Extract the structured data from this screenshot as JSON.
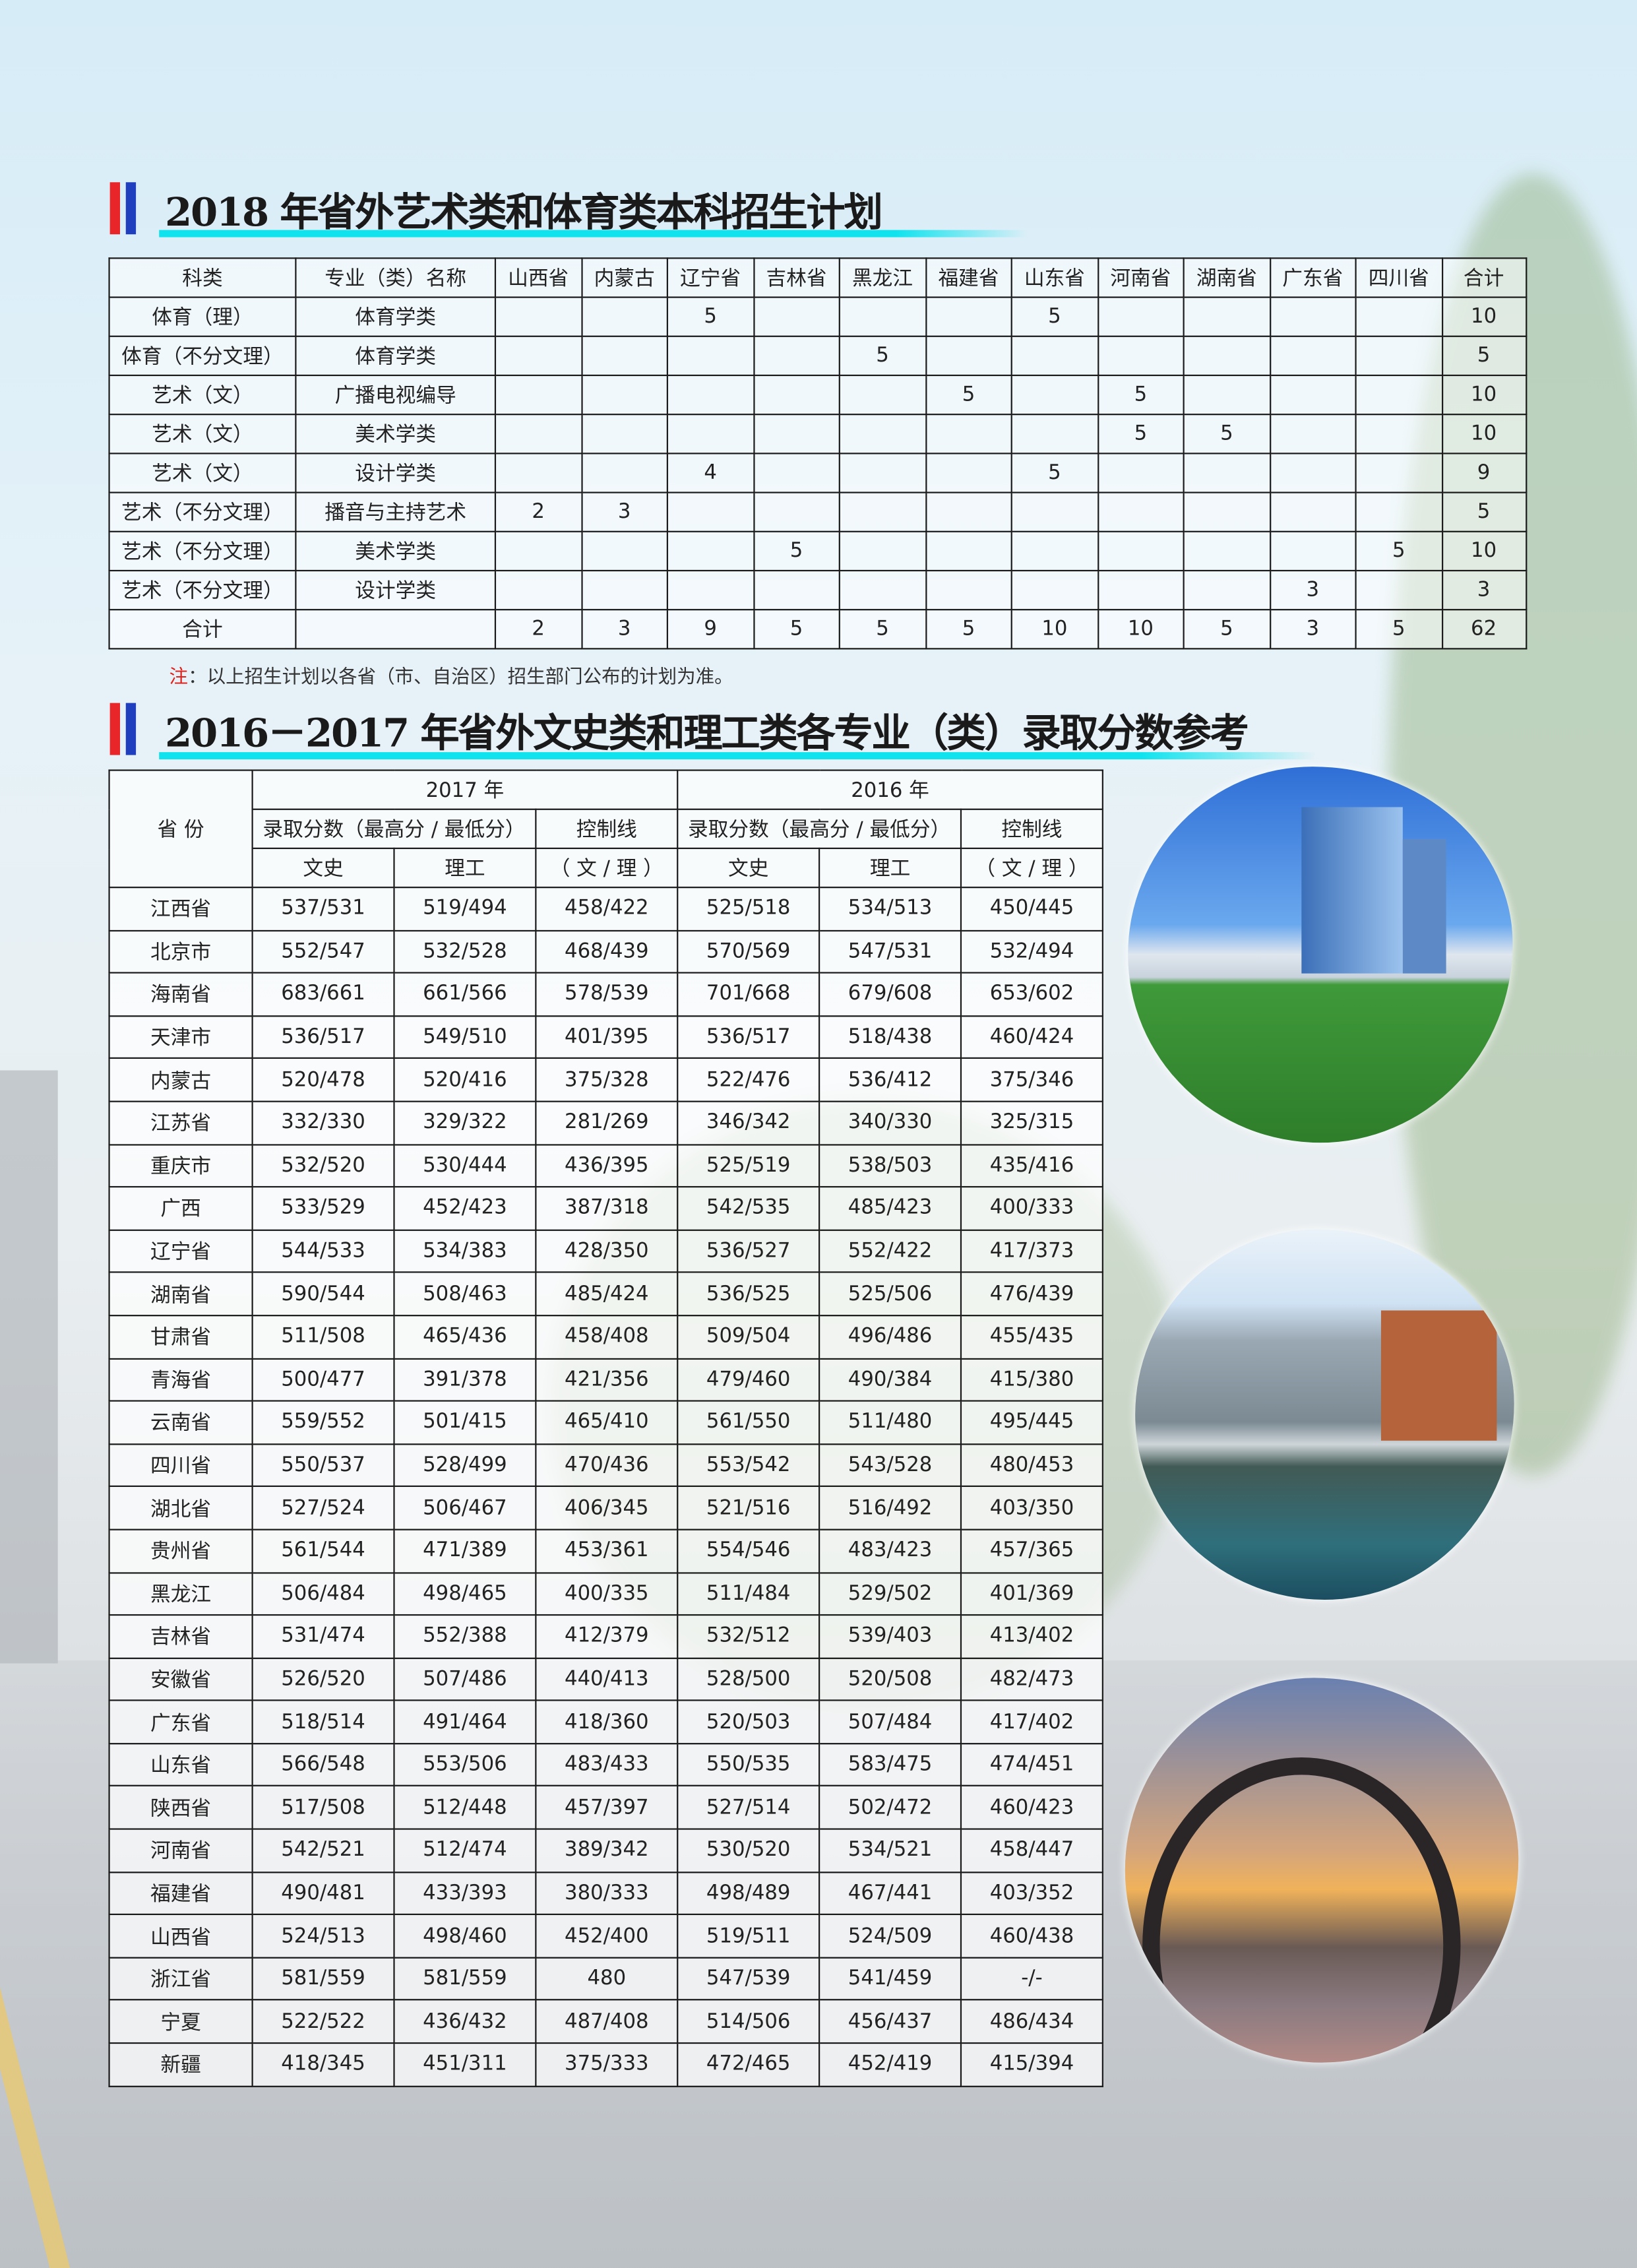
{
  "colors": {
    "bar_red": "#e8262a",
    "bar_blue": "#1f3fbf",
    "underline": "#11e3ee",
    "note_red": "#e0201a"
  },
  "section1": {
    "title": "2018 年省外艺术类和体育类本科招生计划",
    "headers": [
      "科类",
      "专业（类）名称",
      "山西省",
      "内蒙古",
      "辽宁省",
      "吉林省",
      "黑龙江",
      "福建省",
      "山东省",
      "河南省",
      "湖南省",
      "广东省",
      "四川省",
      "合计"
    ],
    "rows": [
      [
        "体育（理）",
        "体育学类",
        "",
        "",
        "5",
        "",
        "",
        "",
        "5",
        "",
        "",
        "",
        "",
        "10"
      ],
      [
        "体育（不分文理）",
        "体育学类",
        "",
        "",
        "",
        "",
        "5",
        "",
        "",
        "",
        "",
        "",
        "",
        "5"
      ],
      [
        "艺术（文）",
        "广播电视编导",
        "",
        "",
        "",
        "",
        "",
        "5",
        "",
        "5",
        "",
        "",
        "",
        "10"
      ],
      [
        "艺术（文）",
        "美术学类",
        "",
        "",
        "",
        "",
        "",
        "",
        "",
        "5",
        "5",
        "",
        "",
        "10"
      ],
      [
        "艺术（文）",
        "设计学类",
        "",
        "",
        "4",
        "",
        "",
        "",
        "5",
        "",
        "",
        "",
        "",
        "9"
      ],
      [
        "艺术（不分文理）",
        "播音与主持艺术",
        "2",
        "3",
        "",
        "",
        "",
        "",
        "",
        "",
        "",
        "",
        "",
        "5"
      ],
      [
        "艺术（不分文理）",
        "美术学类",
        "",
        "",
        "",
        "5",
        "",
        "",
        "",
        "",
        "",
        "",
        "5",
        "10"
      ],
      [
        "艺术（不分文理）",
        "设计学类",
        "",
        "",
        "",
        "",
        "",
        "",
        "",
        "",
        "",
        "3",
        "",
        "3"
      ],
      [
        "合计",
        "",
        "2",
        "3",
        "9",
        "5",
        "5",
        "5",
        "10",
        "10",
        "5",
        "3",
        "5",
        "62"
      ]
    ],
    "note_label": "注",
    "note_text": "：以上招生计划以各省（市、自治区）招生部门公布的计划为准。"
  },
  "section2": {
    "title": "2016－2017 年省外文史类和理工类各专业（类）录取分数参考",
    "header": {
      "province": "省 份",
      "year_2017": "2017 年",
      "year_2016": "2016 年",
      "score": "录取分数（最高分 / 最低分）",
      "control": "控制线",
      "control_sub": "（ 文 / 理 ）",
      "wenshi": "文史",
      "ligong": "理工"
    },
    "rows": [
      [
        "江西省",
        "537/531",
        "519/494",
        "458/422",
        "525/518",
        "534/513",
        "450/445"
      ],
      [
        "北京市",
        "552/547",
        "532/528",
        "468/439",
        "570/569",
        "547/531",
        "532/494"
      ],
      [
        "海南省",
        "683/661",
        "661/566",
        "578/539",
        "701/668",
        "679/608",
        "653/602"
      ],
      [
        "天津市",
        "536/517",
        "549/510",
        "401/395",
        "536/517",
        "518/438",
        "460/424"
      ],
      [
        "内蒙古",
        "520/478",
        "520/416",
        "375/328",
        "522/476",
        "536/412",
        "375/346"
      ],
      [
        "江苏省",
        "332/330",
        "329/322",
        "281/269",
        "346/342",
        "340/330",
        "325/315"
      ],
      [
        "重庆市",
        "532/520",
        "530/444",
        "436/395",
        "525/519",
        "538/503",
        "435/416"
      ],
      [
        "广西",
        "533/529",
        "452/423",
        "387/318",
        "542/535",
        "485/423",
        "400/333"
      ],
      [
        "辽宁省",
        "544/533",
        "534/383",
        "428/350",
        "536/527",
        "552/422",
        "417/373"
      ],
      [
        "湖南省",
        "590/544",
        "508/463",
        "485/424",
        "536/525",
        "525/506",
        "476/439"
      ],
      [
        "甘肃省",
        "511/508",
        "465/436",
        "458/408",
        "509/504",
        "496/486",
        "455/435"
      ],
      [
        "青海省",
        "500/477",
        "391/378",
        "421/356",
        "479/460",
        "490/384",
        "415/380"
      ],
      [
        "云南省",
        "559/552",
        "501/415",
        "465/410",
        "561/550",
        "511/480",
        "495/445"
      ],
      [
        "四川省",
        "550/537",
        "528/499",
        "470/436",
        "553/542",
        "543/528",
        "480/453"
      ],
      [
        "湖北省",
        "527/524",
        "506/467",
        "406/345",
        "521/516",
        "516/492",
        "403/350"
      ],
      [
        "贵州省",
        "561/544",
        "471/389",
        "453/361",
        "554/546",
        "483/423",
        "457/365"
      ],
      [
        "黑龙江",
        "506/484",
        "498/465",
        "400/335",
        "511/484",
        "529/502",
        "401/369"
      ],
      [
        "吉林省",
        "531/474",
        "552/388",
        "412/379",
        "532/512",
        "539/403",
        "413/402"
      ],
      [
        "安徽省",
        "526/520",
        "507/486",
        "440/413",
        "528/500",
        "520/508",
        "482/473"
      ],
      [
        "广东省",
        "518/514",
        "491/464",
        "418/360",
        "520/503",
        "507/484",
        "417/402"
      ],
      [
        "山东省",
        "566/548",
        "553/506",
        "483/433",
        "550/535",
        "583/475",
        "474/451"
      ],
      [
        "陕西省",
        "517/508",
        "512/448",
        "457/397",
        "527/514",
        "502/472",
        "460/423"
      ],
      [
        "河南省",
        "542/521",
        "512/474",
        "389/342",
        "530/520",
        "534/521",
        "458/447"
      ],
      [
        "福建省",
        "490/481",
        "433/393",
        "380/333",
        "498/489",
        "467/441",
        "403/352"
      ],
      [
        "山西省",
        "524/513",
        "498/460",
        "452/400",
        "519/511",
        "524/509",
        "460/438"
      ],
      [
        "浙江省",
        "581/559",
        "581/559",
        "480",
        "547/539",
        "541/459",
        "-/-"
      ],
      [
        "宁夏",
        "522/522",
        "436/432",
        "487/408",
        "514/506",
        "456/437",
        "486/434"
      ],
      [
        "新疆",
        "418/345",
        "451/311",
        "375/333",
        "472/465",
        "452/419",
        "415/394"
      ]
    ]
  },
  "photos": [
    "campus-building-sports-field-photo",
    "campus-lake-building-photo",
    "campus-arch-sunset-photo"
  ]
}
